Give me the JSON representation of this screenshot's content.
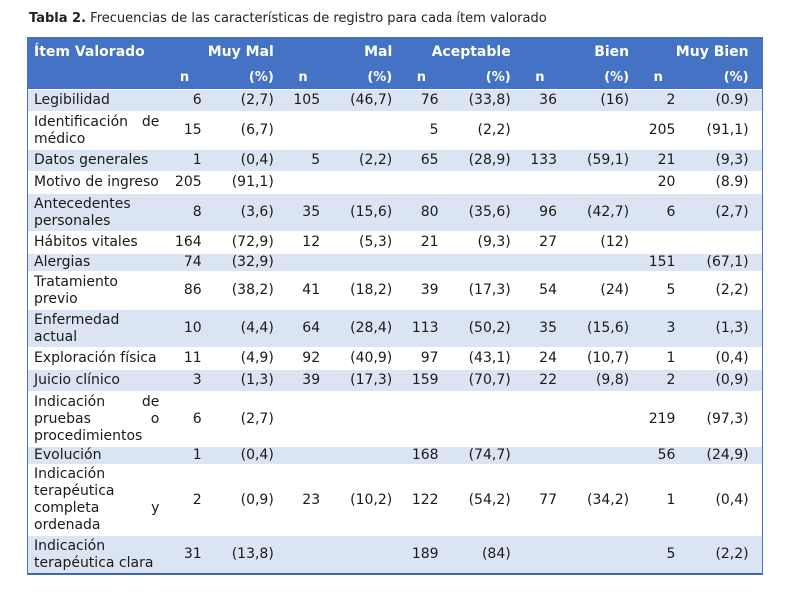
{
  "caption": {
    "label": "Tabla 2.",
    "text": "Frecuencias de las características de registro para cada ítem valorado"
  },
  "header": {
    "item": "Ítem Valorado",
    "groups": [
      "Muy Mal",
      "Mal",
      "Aceptable",
      "Bien",
      "Muy Bien"
    ],
    "n": "n",
    "pct": "(%)"
  },
  "rows": [
    {
      "label": "Legibilidad",
      "cells": [
        "6",
        "(2,7)",
        "105",
        "(46,7)",
        "76",
        "(33,8)",
        "36",
        "(16)",
        "2",
        "(0.9)"
      ]
    },
    {
      "label": "Identificación de médico",
      "cells": [
        "15",
        "(6,7)",
        "",
        "",
        "5",
        "(2,2)",
        "",
        "",
        "205",
        "(91,1)"
      ]
    },
    {
      "label": "Datos generales",
      "cells": [
        "1",
        "(0,4)",
        "5",
        "(2,2)",
        "65",
        "(28,9)",
        "133",
        "(59,1)",
        "21",
        "(9,3)"
      ]
    },
    {
      "label": "Motivo de ingreso",
      "cells": [
        "205",
        "(91,1)",
        "",
        "",
        "",
        "",
        "",
        "",
        "20",
        "(8.9)"
      ]
    },
    {
      "label": "Antecedentes personales",
      "cells": [
        "8",
        "(3,6)",
        "35",
        "(15,6)",
        "80",
        "(35,6)",
        "96",
        "(42,7)",
        "6",
        "(2,7)"
      ]
    },
    {
      "label": "Hábitos vitales",
      "cells": [
        "164",
        "(72,9)",
        "12",
        "(5,3)",
        "21",
        "(9,3)",
        "27",
        "(12)",
        "",
        ""
      ]
    },
    {
      "label": "Alergias",
      "cells": [
        "74",
        "(32,9)",
        "",
        "",
        "",
        "",
        "",
        "",
        "151",
        "(67,1)"
      ]
    },
    {
      "label": "Tratamiento previo",
      "cells": [
        "86",
        "(38,2)",
        "41",
        "(18,2)",
        "39",
        "(17,3)",
        "54",
        "(24)",
        "5",
        "(2,2)"
      ]
    },
    {
      "label": "Enfermedad actual",
      "cells": [
        "10",
        "(4,4)",
        "64",
        "(28,4)",
        "113",
        "(50,2)",
        "35",
        "(15,6)",
        "3",
        "(1,3)"
      ]
    },
    {
      "label": "Exploración física",
      "cells": [
        "11",
        "(4,9)",
        "92",
        "(40,9)",
        "97",
        "(43,1)",
        "24",
        "(10,7)",
        "1",
        "(0,4)"
      ]
    },
    {
      "label": "Juicio clínico",
      "cells": [
        "3",
        "(1,3)",
        "39",
        "(17,3)",
        "159",
        "(70,7)",
        "22",
        "(9,8)",
        "2",
        "(0,9)"
      ]
    },
    {
      "label": "Indicación de pruebas o procedimientos",
      "cells": [
        "6",
        "(2,7)",
        "",
        "",
        "",
        "",
        "",
        "",
        "219",
        "(97,3)"
      ]
    },
    {
      "label": "Evolución",
      "cells": [
        "1",
        "(0,4)",
        "",
        "",
        "168",
        "(74,7)",
        "",
        "",
        "56",
        "(24,9)"
      ]
    },
    {
      "label": "Indicación terapéutica completa y ordenada",
      "cells": [
        "2",
        "(0,9)",
        "23",
        "(10,2)",
        "122",
        "(54,2)",
        "77",
        "(34,2)",
        "1",
        "(0,4)"
      ]
    },
    {
      "label": "Indicación terapéutica clara",
      "cells": [
        "31",
        "(13,8)",
        "",
        "",
        "189",
        "(84)",
        "",
        "",
        "5",
        "(2,2)"
      ]
    }
  ]
}
